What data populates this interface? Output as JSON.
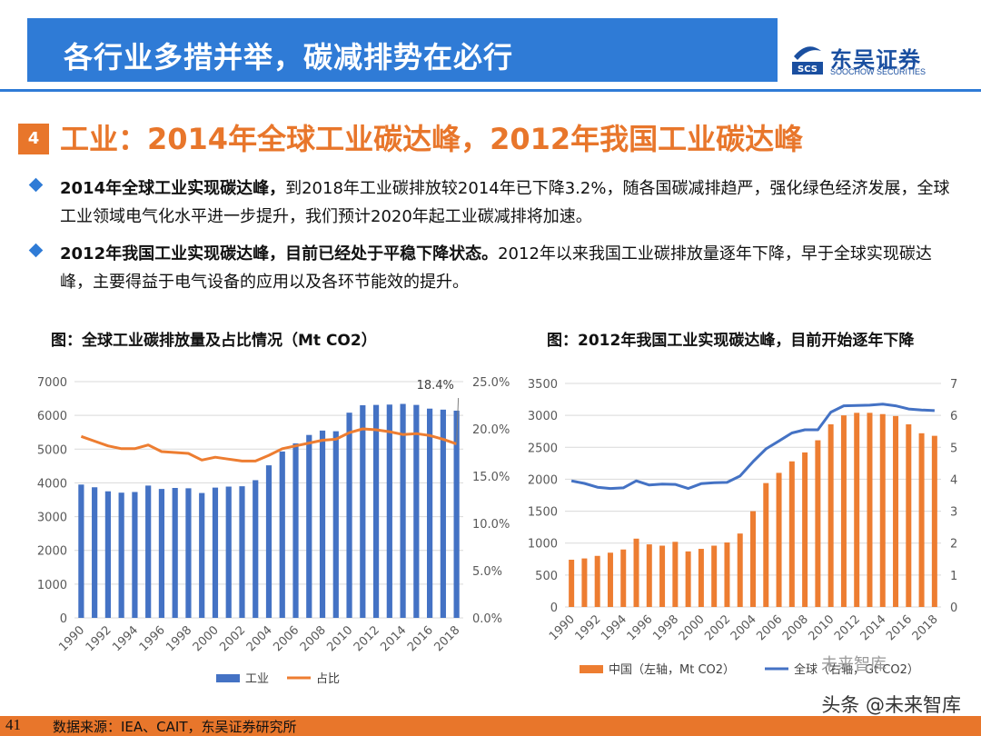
{
  "header": {
    "title": "各行业多措并举，碳减排势在必行"
  },
  "logo": {
    "name_cn": "东吴证券",
    "name_en": "SOOCHOW SECURITIES",
    "mark": "SCS"
  },
  "section": {
    "number": "4",
    "title": "工业：2014年全球工业碳达峰，2012年我国工业碳达峰"
  },
  "bullets": [
    {
      "bold": "2014年全球工业实现碳达峰，",
      "text": "到2018年工业碳排放较2014年已下降3.2%，随各国碳减排趋严，强化绿色经济发展，全球工业领域电气化水平进一步提升，我们预计2020年起工业碳减排将加速。"
    },
    {
      "bold": "2012年我国工业实现碳达峰，目前已经处于平稳下降状态。",
      "text": "2012年以来我国工业碳排放量逐年下降，早于全球实现碳达峰，主要得益于电气设备的应用以及各环节能效的提升。"
    }
  ],
  "chart_data": [
    {
      "type": "bar",
      "title": "图：全球工业碳排放量及占比情况（Mt CO2）",
      "categories": [
        "1990",
        "1991",
        "1992",
        "1993",
        "1994",
        "1995",
        "1996",
        "1997",
        "1998",
        "1999",
        "2000",
        "2001",
        "2002",
        "2003",
        "2004",
        "2005",
        "2006",
        "2007",
        "2008",
        "2009",
        "2010",
        "2011",
        "2012",
        "2013",
        "2014",
        "2015",
        "2016",
        "2017",
        "2018"
      ],
      "x_tick_labels": [
        "1990",
        "1992",
        "1994",
        "1996",
        "1998",
        "2000",
        "2002",
        "2004",
        "2006",
        "2008",
        "2010",
        "2012",
        "2014",
        "2016",
        "2018"
      ],
      "series": [
        {
          "name": "工业",
          "type": "bar",
          "axis": "left",
          "color": "#4472c4",
          "values": [
            3950,
            3870,
            3750,
            3710,
            3730,
            3920,
            3820,
            3850,
            3840,
            3700,
            3860,
            3890,
            3900,
            4080,
            4520,
            4930,
            5170,
            5420,
            5550,
            5530,
            6080,
            6300,
            6310,
            6320,
            6340,
            6310,
            6200,
            6170,
            6140
          ]
        },
        {
          "name": "占比",
          "type": "line",
          "axis": "right",
          "color": "#ed7d31",
          "values": [
            19.2,
            18.7,
            18.2,
            17.9,
            17.9,
            18.3,
            17.6,
            17.5,
            17.4,
            16.7,
            17.0,
            16.8,
            16.6,
            16.6,
            17.2,
            17.9,
            18.2,
            18.5,
            18.8,
            18.9,
            19.6,
            20.0,
            19.9,
            19.7,
            19.4,
            19.5,
            19.3,
            18.9,
            18.4
          ]
        }
      ],
      "ylim_left": [
        0,
        7000
      ],
      "y_ticks_left": [
        "0",
        "1000",
        "2000",
        "3000",
        "4000",
        "5000",
        "6000",
        "7000"
      ],
      "ylim_right": [
        0,
        25
      ],
      "y_ticks_right": [
        "0.0%",
        "5.0%",
        "10.0%",
        "15.0%",
        "20.0%",
        "25.0%"
      ],
      "annotation": "18.4%",
      "legend": [
        "工业",
        "占比"
      ]
    },
    {
      "type": "bar",
      "title": "图：2012年我国工业实现碳达峰，目前开始逐年下降",
      "categories": [
        "1990",
        "1991",
        "1992",
        "1993",
        "1994",
        "1995",
        "1996",
        "1997",
        "1998",
        "1999",
        "2000",
        "2001",
        "2002",
        "2003",
        "2004",
        "2005",
        "2006",
        "2007",
        "2008",
        "2009",
        "2010",
        "2011",
        "2012",
        "2013",
        "2014",
        "2015",
        "2016",
        "2017",
        "2018"
      ],
      "x_tick_labels": [
        "1990",
        "1992",
        "1994",
        "1996",
        "1998",
        "2000",
        "2002",
        "2004",
        "2006",
        "2008",
        "2010",
        "2012",
        "2014",
        "2016",
        "2018"
      ],
      "series": [
        {
          "name": "中国（左轴，Mt CO2）",
          "type": "bar",
          "axis": "left",
          "color": "#ed7d31",
          "values": [
            740,
            760,
            800,
            850,
            900,
            1070,
            980,
            960,
            1020,
            870,
            910,
            960,
            1010,
            1150,
            1500,
            1940,
            2100,
            2280,
            2420,
            2610,
            2860,
            3000,
            3040,
            3040,
            3020,
            2990,
            2860,
            2720,
            2680
          ]
        },
        {
          "name": "全球（右轴，Gt CO2）",
          "type": "line",
          "axis": "right",
          "color": "#4472c4",
          "values": [
            3.95,
            3.87,
            3.75,
            3.71,
            3.73,
            3.95,
            3.82,
            3.85,
            3.84,
            3.71,
            3.86,
            3.89,
            3.9,
            4.1,
            4.55,
            4.95,
            5.2,
            5.45,
            5.55,
            5.55,
            6.1,
            6.3,
            6.31,
            6.32,
            6.35,
            6.3,
            6.2,
            6.17,
            6.15
          ]
        }
      ],
      "ylim_left": [
        0,
        3500
      ],
      "y_ticks_left": [
        "0",
        "500",
        "1000",
        "1500",
        "2000",
        "2500",
        "3000",
        "3500"
      ],
      "ylim_right": [
        0,
        7
      ],
      "y_ticks_right": [
        "0",
        "1",
        "2",
        "3",
        "4",
        "5",
        "6",
        "7"
      ],
      "legend": [
        "中国（左轴，Mt CO2）",
        "全球（右轴，Gt CO2）"
      ]
    }
  ],
  "footer": {
    "page": "41",
    "source": "数据来源：IEA、CAIT，东吴证券研究所"
  },
  "watermark": {
    "text": "头条 @未来智库",
    "faint": "未来智库"
  }
}
